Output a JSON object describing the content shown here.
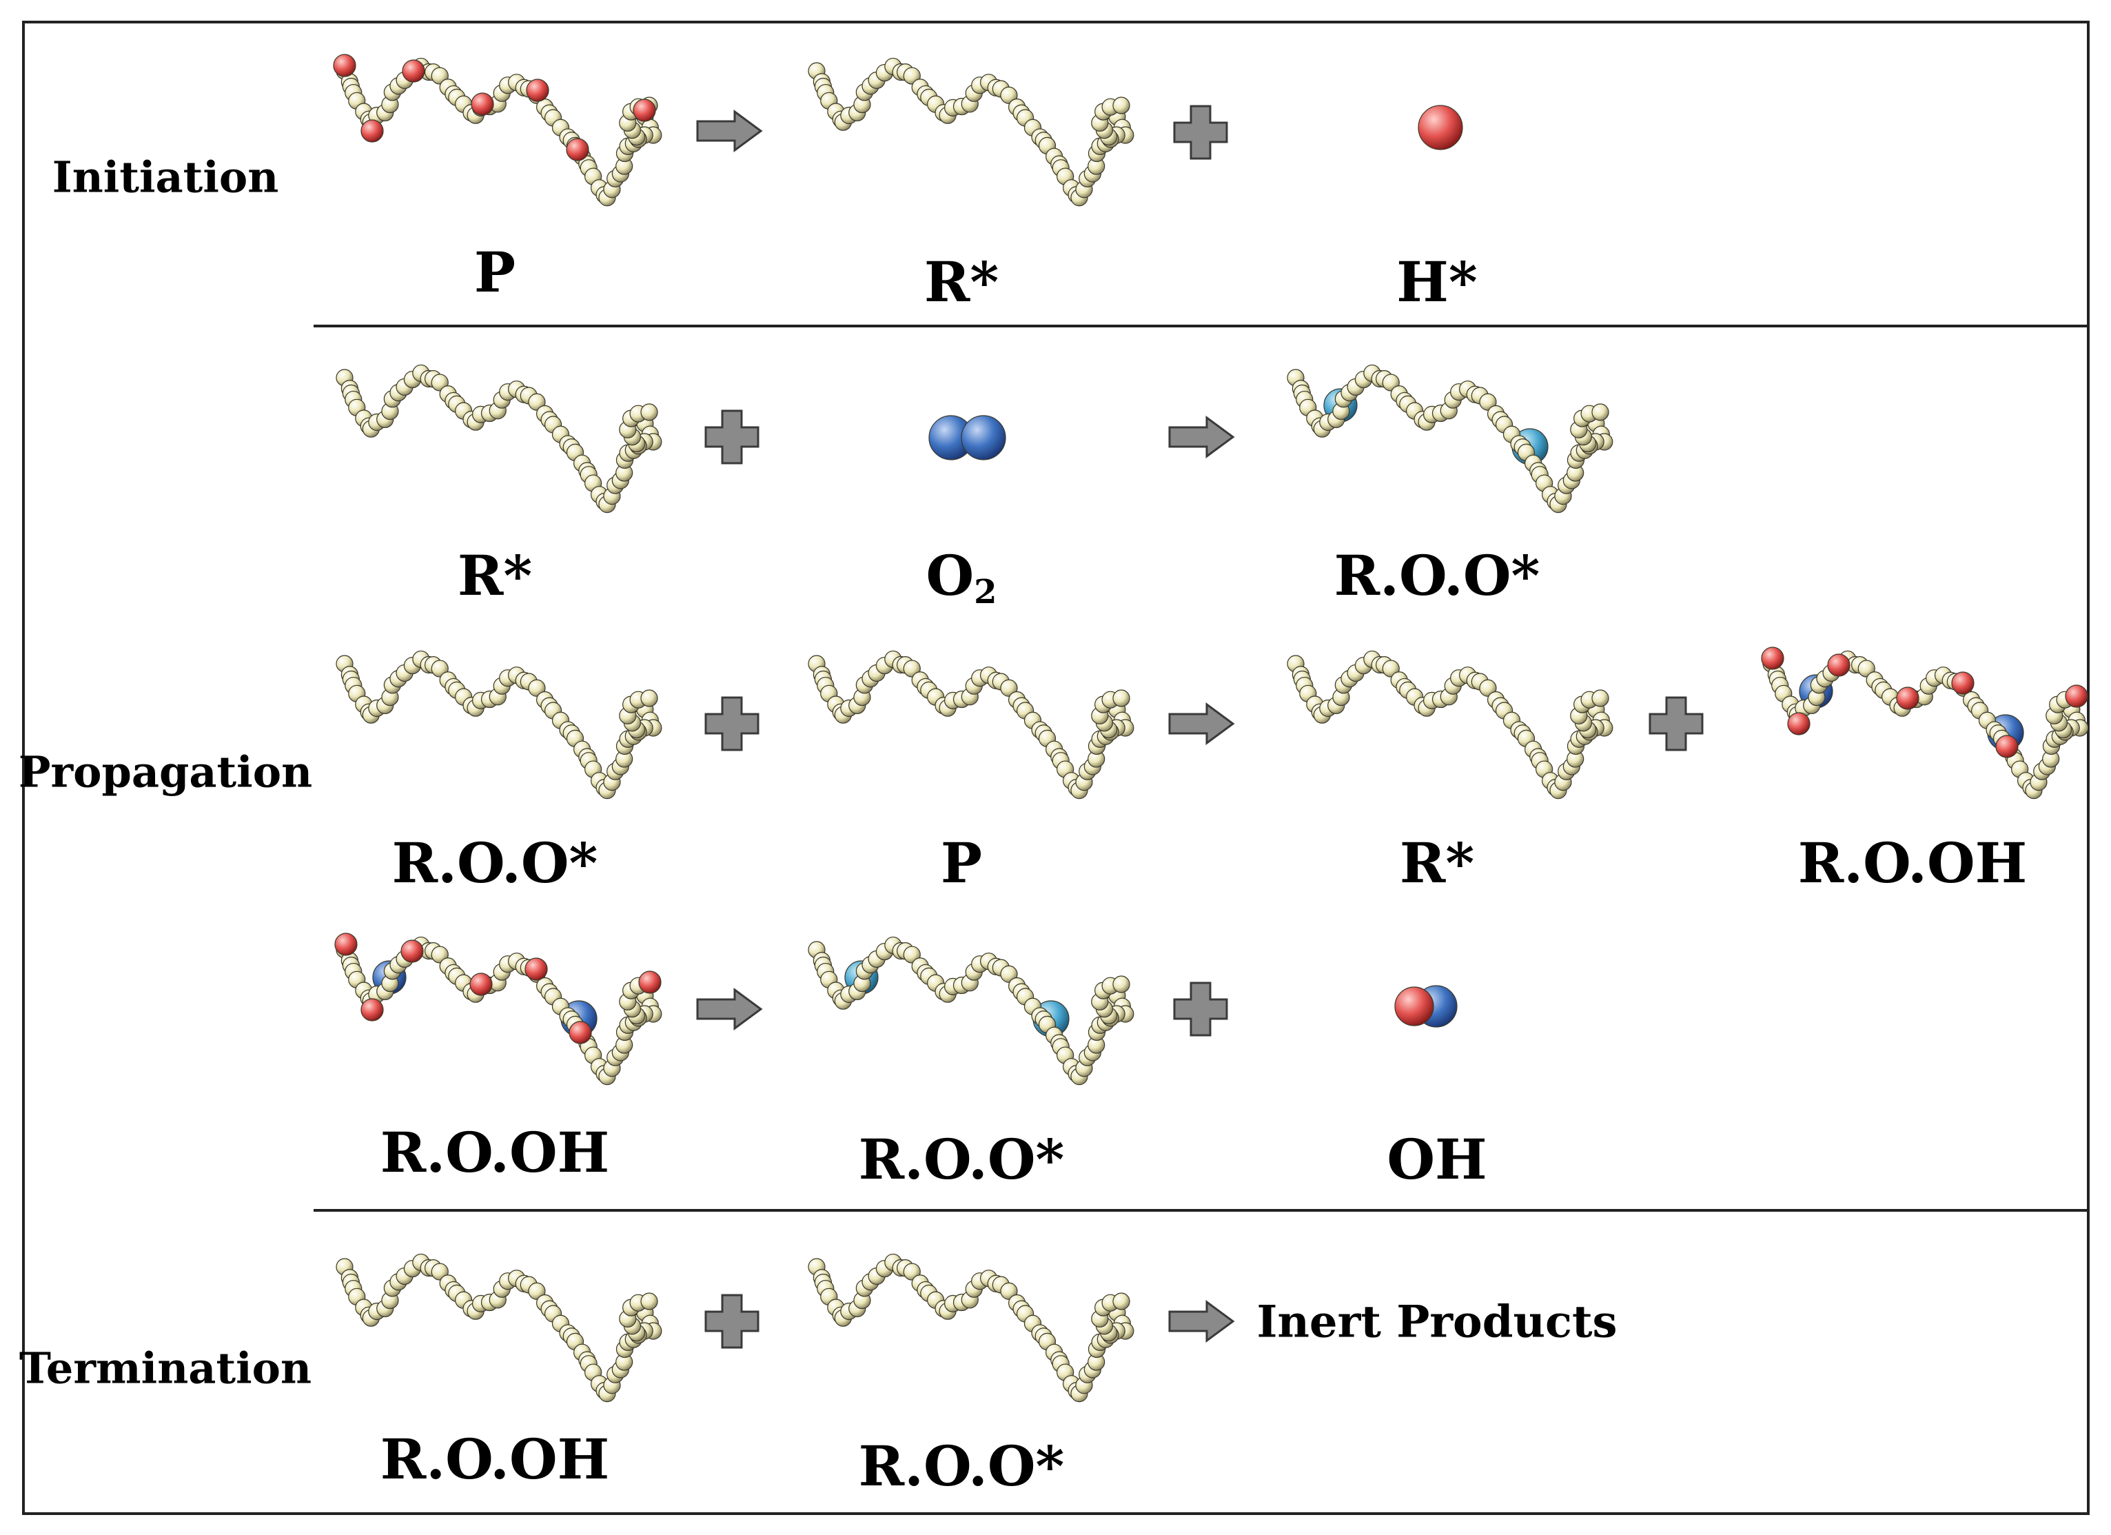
{
  "colors": {
    "chain": "#ece7b8",
    "hydrogen": "#e4524f",
    "oxygen": "#3f73c2",
    "oxygen_light": "#4aa7d0",
    "operator": "#8a8a8a",
    "line": "#222222"
  },
  "stages": {
    "initiation": "Initiation",
    "propagation": "Propagation",
    "termination": "Termination"
  },
  "reactions": {
    "r1": {
      "reactant": "P",
      "product_1": "R*",
      "product_2": "H*"
    },
    "r2": {
      "reactant_1": "R*",
      "reactant_2_main": "O",
      "reactant_2_sub": "2",
      "product": "R.O.O*"
    },
    "r3": {
      "reactant_1": "R.O.O*",
      "reactant_2": "P",
      "product_1": "R*",
      "product_2": "R.O.OH"
    },
    "r4": {
      "reactant": "R.O.OH",
      "product_1": "R.O.O*",
      "product_2": "OH"
    },
    "r5": {
      "reactant_1": "R.O.OH",
      "reactant_2": "R.O.O*",
      "product": "Inert Products"
    }
  }
}
